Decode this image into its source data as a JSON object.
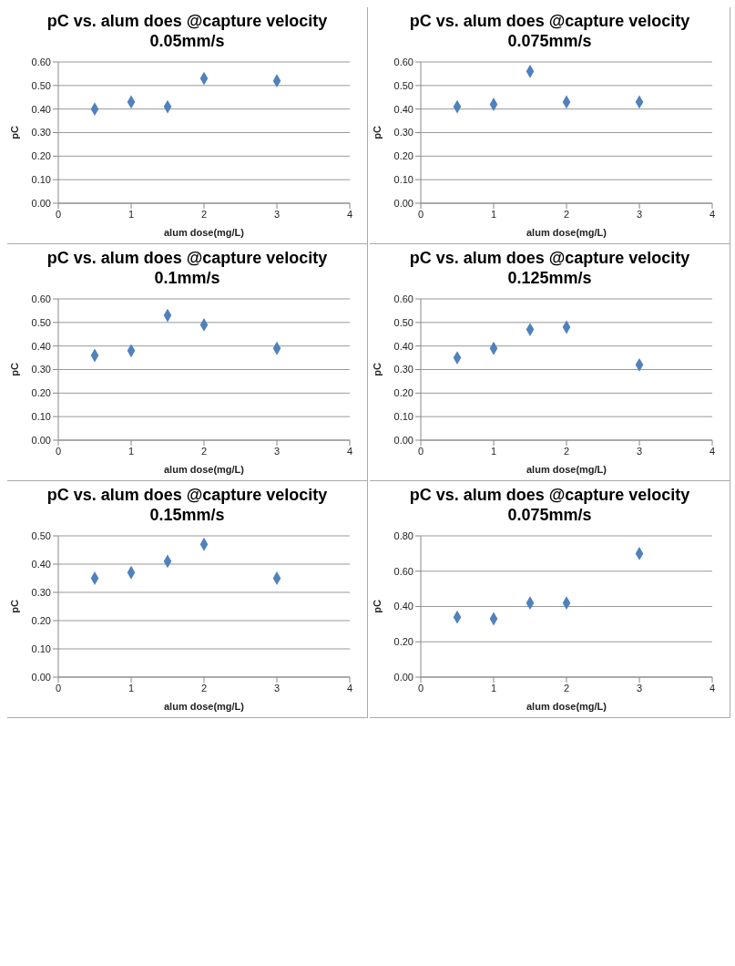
{
  "chart_data": [
    {
      "type": "scatter",
      "title": "pC vs. alum does @capture velocity 0.05mm/s",
      "xlabel": "alum dose(mg/L)",
      "ylabel": "pC",
      "x": [
        0.5,
        1,
        1.5,
        2,
        3
      ],
      "values": [
        0.4,
        0.43,
        0.41,
        0.53,
        0.52
      ],
      "color": "#4f81bd",
      "marker": "diamond",
      "grid": "y",
      "xlim": [
        0,
        4
      ],
      "xticks": [
        0,
        1,
        2,
        3,
        4
      ],
      "ylim": [
        0,
        0.6
      ],
      "yticks": [
        {
          "value": 0,
          "label": "0.00"
        },
        {
          "value": 0.1,
          "label": "0.10"
        },
        {
          "value": 0.2,
          "label": "0.20"
        },
        {
          "value": 0.3,
          "label": "0.30"
        },
        {
          "value": 0.4,
          "label": "0.40"
        },
        {
          "value": 0.5,
          "label": "0.50"
        },
        {
          "value": 0.6,
          "label": "0.60"
        }
      ]
    },
    {
      "type": "scatter",
      "title": "pC vs. alum does @capture velocity 0.075mm/s",
      "xlabel": "alum dose(mg/L)",
      "ylabel": "pC",
      "x": [
        0.5,
        1,
        1.5,
        2,
        3
      ],
      "values": [
        0.41,
        0.42,
        0.56,
        0.43,
        0.43
      ],
      "color": "#4f81bd",
      "marker": "diamond",
      "grid": "y",
      "xlim": [
        0,
        4
      ],
      "xticks": [
        0,
        1,
        2,
        3,
        4
      ],
      "ylim": [
        0,
        0.6
      ],
      "yticks": [
        {
          "value": 0,
          "label": "0.00"
        },
        {
          "value": 0.1,
          "label": "0.10"
        },
        {
          "value": 0.2,
          "label": "0.20"
        },
        {
          "value": 0.3,
          "label": "0.30"
        },
        {
          "value": 0.4,
          "label": "0.40"
        },
        {
          "value": 0.5,
          "label": "0.50"
        },
        {
          "value": 0.6,
          "label": "0.60"
        }
      ]
    },
    {
      "type": "scatter",
      "title": "pC vs. alum does @capture velocity 0.1mm/s",
      "xlabel": "alum dose(mg/L)",
      "ylabel": "pC",
      "x": [
        0.5,
        1,
        1.5,
        2,
        3
      ],
      "values": [
        0.36,
        0.38,
        0.53,
        0.49,
        0.39
      ],
      "color": "#4f81bd",
      "marker": "diamond",
      "grid": "y",
      "xlim": [
        0,
        4
      ],
      "xticks": [
        0,
        1,
        2,
        3,
        4
      ],
      "ylim": [
        0,
        0.6
      ],
      "yticks": [
        {
          "value": 0,
          "label": "0.00"
        },
        {
          "value": 0.1,
          "label": "0.10"
        },
        {
          "value": 0.2,
          "label": "0.20"
        },
        {
          "value": 0.3,
          "label": "0.30"
        },
        {
          "value": 0.4,
          "label": "0.40"
        },
        {
          "value": 0.5,
          "label": "0.50"
        },
        {
          "value": 0.6,
          "label": "0.60"
        }
      ]
    },
    {
      "type": "scatter",
      "title": "pC vs. alum does @capture velocity 0.125mm/s",
      "xlabel": "alum dose(mg/L)",
      "ylabel": "pC",
      "x": [
        0.5,
        1,
        1.5,
        2,
        3
      ],
      "values": [
        0.35,
        0.39,
        0.47,
        0.48,
        0.32
      ],
      "color": "#4f81bd",
      "marker": "diamond",
      "grid": "y",
      "xlim": [
        0,
        4
      ],
      "xticks": [
        0,
        1,
        2,
        3,
        4
      ],
      "ylim": [
        0,
        0.6
      ],
      "yticks": [
        {
          "value": 0,
          "label": "0.00"
        },
        {
          "value": 0.1,
          "label": "0.10"
        },
        {
          "value": 0.2,
          "label": "0.20"
        },
        {
          "value": 0.3,
          "label": "0.30"
        },
        {
          "value": 0.4,
          "label": "0.40"
        },
        {
          "value": 0.5,
          "label": "0.50"
        },
        {
          "value": 0.6,
          "label": "0.60"
        }
      ]
    },
    {
      "type": "scatter",
      "title": "pC vs. alum does @capture velocity 0.15mm/s",
      "xlabel": "alum dose(mg/L)",
      "ylabel": "pC",
      "x": [
        0.5,
        1,
        1.5,
        2,
        3
      ],
      "values": [
        0.35,
        0.37,
        0.41,
        0.47,
        0.35
      ],
      "color": "#4f81bd",
      "marker": "diamond",
      "grid": "y",
      "xlim": [
        0,
        4
      ],
      "xticks": [
        0,
        1,
        2,
        3,
        4
      ],
      "ylim": [
        0,
        0.5
      ],
      "yticks": [
        {
          "value": 0,
          "label": "0.00"
        },
        {
          "value": 0.1,
          "label": "0.10"
        },
        {
          "value": 0.2,
          "label": "0.20"
        },
        {
          "value": 0.3,
          "label": "0.30"
        },
        {
          "value": 0.4,
          "label": "0.40"
        },
        {
          "value": 0.5,
          "label": "0.50"
        }
      ]
    },
    {
      "type": "scatter",
      "title": "pC vs. alum does @capture velocity 0.075mm/s",
      "xlabel": "alum dose(mg/L)",
      "ylabel": "pC",
      "x": [
        0.5,
        1,
        1.5,
        2,
        3
      ],
      "values": [
        0.34,
        0.33,
        0.42,
        0.42,
        0.7
      ],
      "color": "#4f81bd",
      "marker": "diamond",
      "grid": "y",
      "xlim": [
        0,
        4
      ],
      "xticks": [
        0,
        1,
        2,
        3,
        4
      ],
      "ylim": [
        0,
        0.8
      ],
      "yticks": [
        {
          "value": 0,
          "label": "0.00"
        },
        {
          "value": 0.2,
          "label": "0.20"
        },
        {
          "value": 0.4,
          "label": "0.40"
        },
        {
          "value": 0.6,
          "label": "0.60"
        },
        {
          "value": 0.8,
          "label": "0.80"
        }
      ]
    }
  ]
}
